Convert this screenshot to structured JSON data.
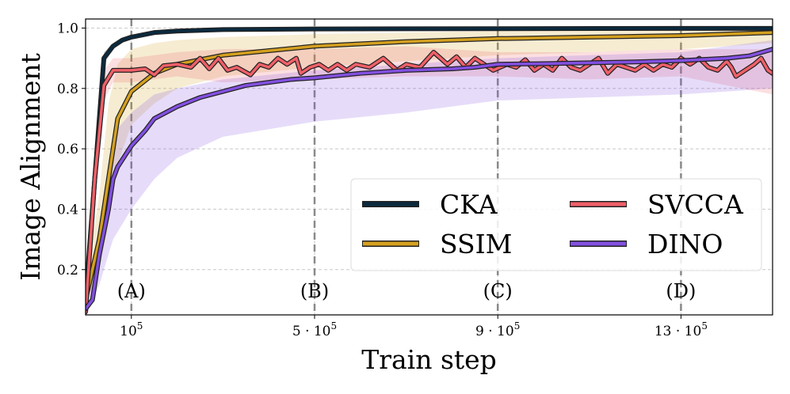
{
  "chart_data": {
    "type": "line",
    "xlabel": "Train step",
    "ylabel": "Image Alignment",
    "xlim": [
      0,
      1500000
    ],
    "ylim": [
      0.05,
      1.03
    ],
    "grid": true,
    "legend": "lower-right",
    "yticks": [
      {
        "value": 0.2,
        "label": "0.2"
      },
      {
        "value": 0.4,
        "label": "0.4"
      },
      {
        "value": 0.6,
        "label": "0.6"
      },
      {
        "value": 0.8,
        "label": "0.8"
      },
      {
        "value": 1.0,
        "label": "1.0"
      }
    ],
    "xticks": [
      {
        "value": 100000,
        "base": "10",
        "exp": "5"
      },
      {
        "value": 500000,
        "base": "5 · 10",
        "exp": "5"
      },
      {
        "value": 900000,
        "base": "9 · 10",
        "exp": "5"
      },
      {
        "value": 1300000,
        "base": "13 · 10",
        "exp": "5"
      }
    ],
    "markers": [
      {
        "x": 100000,
        "label": "(A)"
      },
      {
        "x": 500000,
        "label": "(B)"
      },
      {
        "x": 900000,
        "label": "(C)"
      },
      {
        "x": 1300000,
        "label": "(D)"
      }
    ],
    "series": [
      {
        "name": "CKA",
        "color": "#0b2a3f",
        "points": [
          [
            0,
            0.1
          ],
          [
            20000,
            0.5
          ],
          [
            40000,
            0.9
          ],
          [
            60000,
            0.94
          ],
          [
            80000,
            0.96
          ],
          [
            100000,
            0.97
          ],
          [
            150000,
            0.985
          ],
          [
            200000,
            0.99
          ],
          [
            300000,
            0.995
          ],
          [
            500000,
            0.997
          ],
          [
            900000,
            0.998
          ],
          [
            1300000,
            0.999
          ],
          [
            1500000,
            0.999
          ]
        ],
        "band_upper": [
          [
            0,
            0.12
          ],
          [
            20000,
            0.55
          ],
          [
            40000,
            0.92
          ],
          [
            60000,
            0.95
          ],
          [
            80000,
            0.965
          ],
          [
            100000,
            0.975
          ],
          [
            200000,
            0.992
          ],
          [
            500000,
            0.998
          ],
          [
            1500000,
            1.0
          ]
        ],
        "band_lower": [
          [
            0,
            0.08
          ],
          [
            20000,
            0.45
          ],
          [
            40000,
            0.88
          ],
          [
            60000,
            0.93
          ],
          [
            80000,
            0.955
          ],
          [
            100000,
            0.965
          ],
          [
            200000,
            0.988
          ],
          [
            500000,
            0.996
          ],
          [
            1500000,
            0.998
          ]
        ]
      },
      {
        "name": "SSIM",
        "color": "#d4a020",
        "points": [
          [
            0,
            0.1
          ],
          [
            30000,
            0.3
          ],
          [
            50000,
            0.5
          ],
          [
            70000,
            0.7
          ],
          [
            100000,
            0.79
          ],
          [
            150000,
            0.85
          ],
          [
            200000,
            0.88
          ],
          [
            300000,
            0.91
          ],
          [
            500000,
            0.94
          ],
          [
            700000,
            0.955
          ],
          [
            900000,
            0.965
          ],
          [
            1100000,
            0.97
          ],
          [
            1300000,
            0.975
          ],
          [
            1500000,
            0.985
          ]
        ],
        "band_upper": [
          [
            0,
            0.15
          ],
          [
            30000,
            0.45
          ],
          [
            50000,
            0.75
          ],
          [
            70000,
            0.88
          ],
          [
            100000,
            0.93
          ],
          [
            150000,
            0.95
          ],
          [
            200000,
            0.96
          ],
          [
            300000,
            0.97
          ],
          [
            500000,
            0.98
          ],
          [
            900000,
            0.99
          ],
          [
            1500000,
            1.0
          ]
        ],
        "band_lower": [
          [
            0,
            0.08
          ],
          [
            30000,
            0.2
          ],
          [
            50000,
            0.35
          ],
          [
            70000,
            0.55
          ],
          [
            100000,
            0.68
          ],
          [
            150000,
            0.75
          ],
          [
            200000,
            0.8
          ],
          [
            300000,
            0.84
          ],
          [
            500000,
            0.87
          ],
          [
            700000,
            0.89
          ],
          [
            900000,
            0.91
          ],
          [
            1100000,
            0.92
          ],
          [
            1300000,
            0.93
          ],
          [
            1500000,
            0.95
          ]
        ]
      },
      {
        "name": "SVCCA",
        "color": "#f06068",
        "points": [
          [
            0,
            0.06
          ],
          [
            20000,
            0.5
          ],
          [
            40000,
            0.81
          ],
          [
            60000,
            0.86
          ],
          [
            80000,
            0.86
          ],
          [
            100000,
            0.86
          ],
          [
            130000,
            0.865
          ],
          [
            150000,
            0.845
          ],
          [
            170000,
            0.875
          ],
          [
            200000,
            0.88
          ],
          [
            230000,
            0.87
          ],
          [
            250000,
            0.9
          ],
          [
            270000,
            0.865
          ],
          [
            290000,
            0.9
          ],
          [
            310000,
            0.86
          ],
          [
            330000,
            0.87
          ],
          [
            360000,
            0.845
          ],
          [
            380000,
            0.88
          ],
          [
            400000,
            0.87
          ],
          [
            420000,
            0.9
          ],
          [
            440000,
            0.88
          ],
          [
            460000,
            0.9
          ],
          [
            470000,
            0.85
          ],
          [
            490000,
            0.87
          ],
          [
            510000,
            0.88
          ],
          [
            530000,
            0.86
          ],
          [
            550000,
            0.88
          ],
          [
            570000,
            0.86
          ],
          [
            590000,
            0.88
          ],
          [
            620000,
            0.87
          ],
          [
            650000,
            0.9
          ],
          [
            680000,
            0.86
          ],
          [
            700000,
            0.88
          ],
          [
            730000,
            0.87
          ],
          [
            760000,
            0.92
          ],
          [
            790000,
            0.88
          ],
          [
            810000,
            0.905
          ],
          [
            830000,
            0.87
          ],
          [
            850000,
            0.9
          ],
          [
            870000,
            0.88
          ],
          [
            890000,
            0.86
          ],
          [
            920000,
            0.88
          ],
          [
            940000,
            0.87
          ],
          [
            960000,
            0.895
          ],
          [
            980000,
            0.86
          ],
          [
            1000000,
            0.88
          ],
          [
            1020000,
            0.86
          ],
          [
            1040000,
            0.9
          ],
          [
            1060000,
            0.87
          ],
          [
            1080000,
            0.86
          ],
          [
            1100000,
            0.88
          ],
          [
            1120000,
            0.9
          ],
          [
            1140000,
            0.85
          ],
          [
            1160000,
            0.88
          ],
          [
            1180000,
            0.87
          ],
          [
            1200000,
            0.86
          ],
          [
            1220000,
            0.88
          ],
          [
            1240000,
            0.86
          ],
          [
            1260000,
            0.88
          ],
          [
            1280000,
            0.87
          ],
          [
            1300000,
            0.9
          ],
          [
            1320000,
            0.88
          ],
          [
            1340000,
            0.9
          ],
          [
            1360000,
            0.87
          ],
          [
            1380000,
            0.86
          ],
          [
            1400000,
            0.89
          ],
          [
            1410000,
            0.87
          ],
          [
            1420000,
            0.84
          ],
          [
            1440000,
            0.86
          ],
          [
            1460000,
            0.88
          ],
          [
            1475000,
            0.9
          ],
          [
            1490000,
            0.86
          ],
          [
            1500000,
            0.85
          ]
        ],
        "band_upper": [
          [
            0,
            0.1
          ],
          [
            20000,
            0.6
          ],
          [
            40000,
            0.86
          ],
          [
            60000,
            0.9
          ],
          [
            100000,
            0.9
          ],
          [
            200000,
            0.92
          ],
          [
            300000,
            0.93
          ],
          [
            500000,
            0.93
          ],
          [
            700000,
            0.94
          ],
          [
            900000,
            0.92
          ],
          [
            1100000,
            0.92
          ],
          [
            1300000,
            0.93
          ],
          [
            1500000,
            0.93
          ]
        ],
        "band_lower": [
          [
            0,
            0.04
          ],
          [
            20000,
            0.4
          ],
          [
            40000,
            0.76
          ],
          [
            60000,
            0.82
          ],
          [
            100000,
            0.82
          ],
          [
            200000,
            0.84
          ],
          [
            300000,
            0.82
          ],
          [
            500000,
            0.83
          ],
          [
            700000,
            0.84
          ],
          [
            900000,
            0.84
          ],
          [
            1100000,
            0.83
          ],
          [
            1300000,
            0.84
          ],
          [
            1500000,
            0.78
          ]
        ]
      },
      {
        "name": "DINO",
        "color": "#8250e0",
        "points": [
          [
            0,
            0.07
          ],
          [
            15000,
            0.1
          ],
          [
            30000,
            0.25
          ],
          [
            50000,
            0.4
          ],
          [
            60000,
            0.5
          ],
          [
            70000,
            0.54
          ],
          [
            100000,
            0.61
          ],
          [
            130000,
            0.66
          ],
          [
            150000,
            0.7
          ],
          [
            200000,
            0.74
          ],
          [
            250000,
            0.77
          ],
          [
            300000,
            0.79
          ],
          [
            350000,
            0.81
          ],
          [
            400000,
            0.82
          ],
          [
            450000,
            0.83
          ],
          [
            500000,
            0.835
          ],
          [
            600000,
            0.85
          ],
          [
            700000,
            0.86
          ],
          [
            800000,
            0.865
          ],
          [
            850000,
            0.87
          ],
          [
            900000,
            0.88
          ],
          [
            1000000,
            0.882
          ],
          [
            1100000,
            0.885
          ],
          [
            1200000,
            0.888
          ],
          [
            1300000,
            0.892
          ],
          [
            1400000,
            0.9
          ],
          [
            1450000,
            0.908
          ],
          [
            1500000,
            0.93
          ]
        ],
        "band_upper": [
          [
            0,
            0.1
          ],
          [
            30000,
            0.35
          ],
          [
            60000,
            0.65
          ],
          [
            100000,
            0.72
          ],
          [
            150000,
            0.78
          ],
          [
            200000,
            0.8
          ],
          [
            300000,
            0.83
          ],
          [
            500000,
            0.86
          ],
          [
            700000,
            0.88
          ],
          [
            900000,
            0.9
          ],
          [
            1100000,
            0.91
          ],
          [
            1300000,
            0.92
          ],
          [
            1500000,
            0.96
          ]
        ],
        "band_lower": [
          [
            0,
            0.04
          ],
          [
            30000,
            0.15
          ],
          [
            60000,
            0.3
          ],
          [
            100000,
            0.4
          ],
          [
            150000,
            0.5
          ],
          [
            200000,
            0.57
          ],
          [
            300000,
            0.64
          ],
          [
            500000,
            0.69
          ],
          [
            700000,
            0.72
          ],
          [
            900000,
            0.76
          ],
          [
            1100000,
            0.77
          ],
          [
            1300000,
            0.78
          ],
          [
            1500000,
            0.8
          ]
        ]
      }
    ]
  }
}
